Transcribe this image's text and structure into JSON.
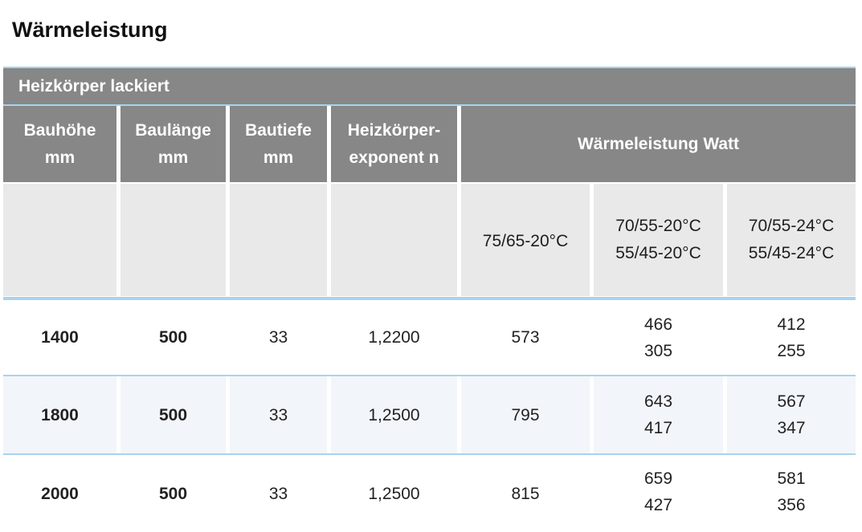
{
  "title": "Wärmeleistung",
  "caption": "Heizkörper lackiert",
  "headers": {
    "bauhoehe": [
      "Bauhöhe",
      "mm"
    ],
    "baulaenge": [
      "Baulänge",
      "mm"
    ],
    "bautiefe": [
      "Bautiefe",
      "mm"
    ],
    "exponent": [
      "Heizkörper-",
      "exponent n"
    ],
    "leistung": "Wärmeleistung Watt"
  },
  "subheaders": {
    "c1": "75/65-20°C",
    "c2": [
      "70/55-20°C",
      "55/45-20°C"
    ],
    "c3": [
      "70/55-24°C",
      "55/45-24°C"
    ]
  },
  "rows": [
    {
      "hoehe": "1400",
      "laenge": "500",
      "tiefe": "33",
      "exponent": "1,2200",
      "w1": "573",
      "w2": [
        "466",
        "305"
      ],
      "w3": [
        "412",
        "255"
      ]
    },
    {
      "hoehe": "1800",
      "laenge": "500",
      "tiefe": "33",
      "exponent": "1,2500",
      "w1": "795",
      "w2": [
        "643",
        "417"
      ],
      "w3": [
        "567",
        "347"
      ]
    },
    {
      "hoehe": "2000",
      "laenge": "500",
      "tiefe": "33",
      "exponent": "1,2500",
      "w1": "815",
      "w2": [
        "659",
        "427"
      ],
      "w3": [
        "581",
        "356"
      ]
    }
  ]
}
